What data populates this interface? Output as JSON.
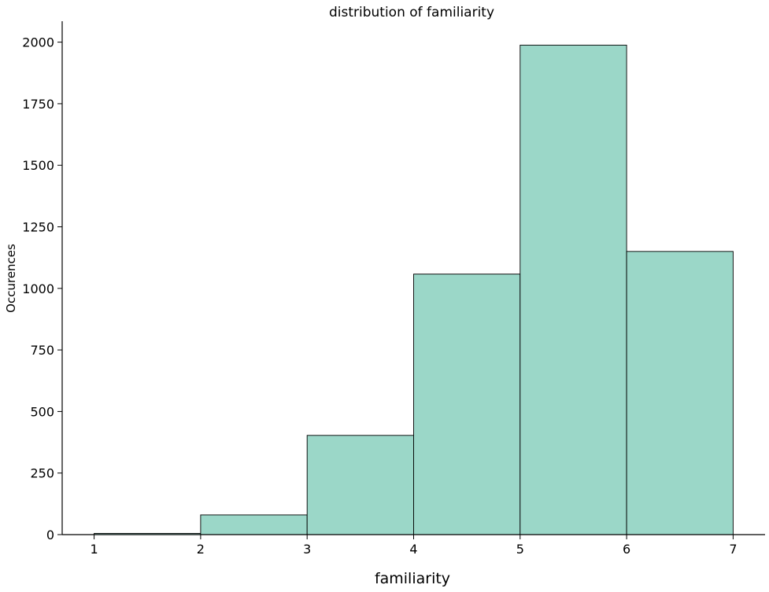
{
  "chart_data": {
    "type": "bar",
    "title": "distribution of familiarity",
    "xlabel": "familiarity",
    "ylabel": "Occurences",
    "bin_edges": [
      1,
      2,
      3,
      4,
      5,
      6,
      7
    ],
    "values": [
      5,
      80,
      403,
      1058,
      1988,
      1150
    ],
    "xticks": [
      1,
      2,
      3,
      4,
      5,
      6,
      7
    ],
    "yticks": [
      0,
      250,
      500,
      750,
      1000,
      1250,
      1500,
      1750,
      2000
    ],
    "xlim": [
      0.7,
      7.3
    ],
    "ylim": [
      0,
      2085
    ],
    "bar_color": "#9bd7c8",
    "edge_color": "#000000",
    "grid": false,
    "legend": "none"
  }
}
